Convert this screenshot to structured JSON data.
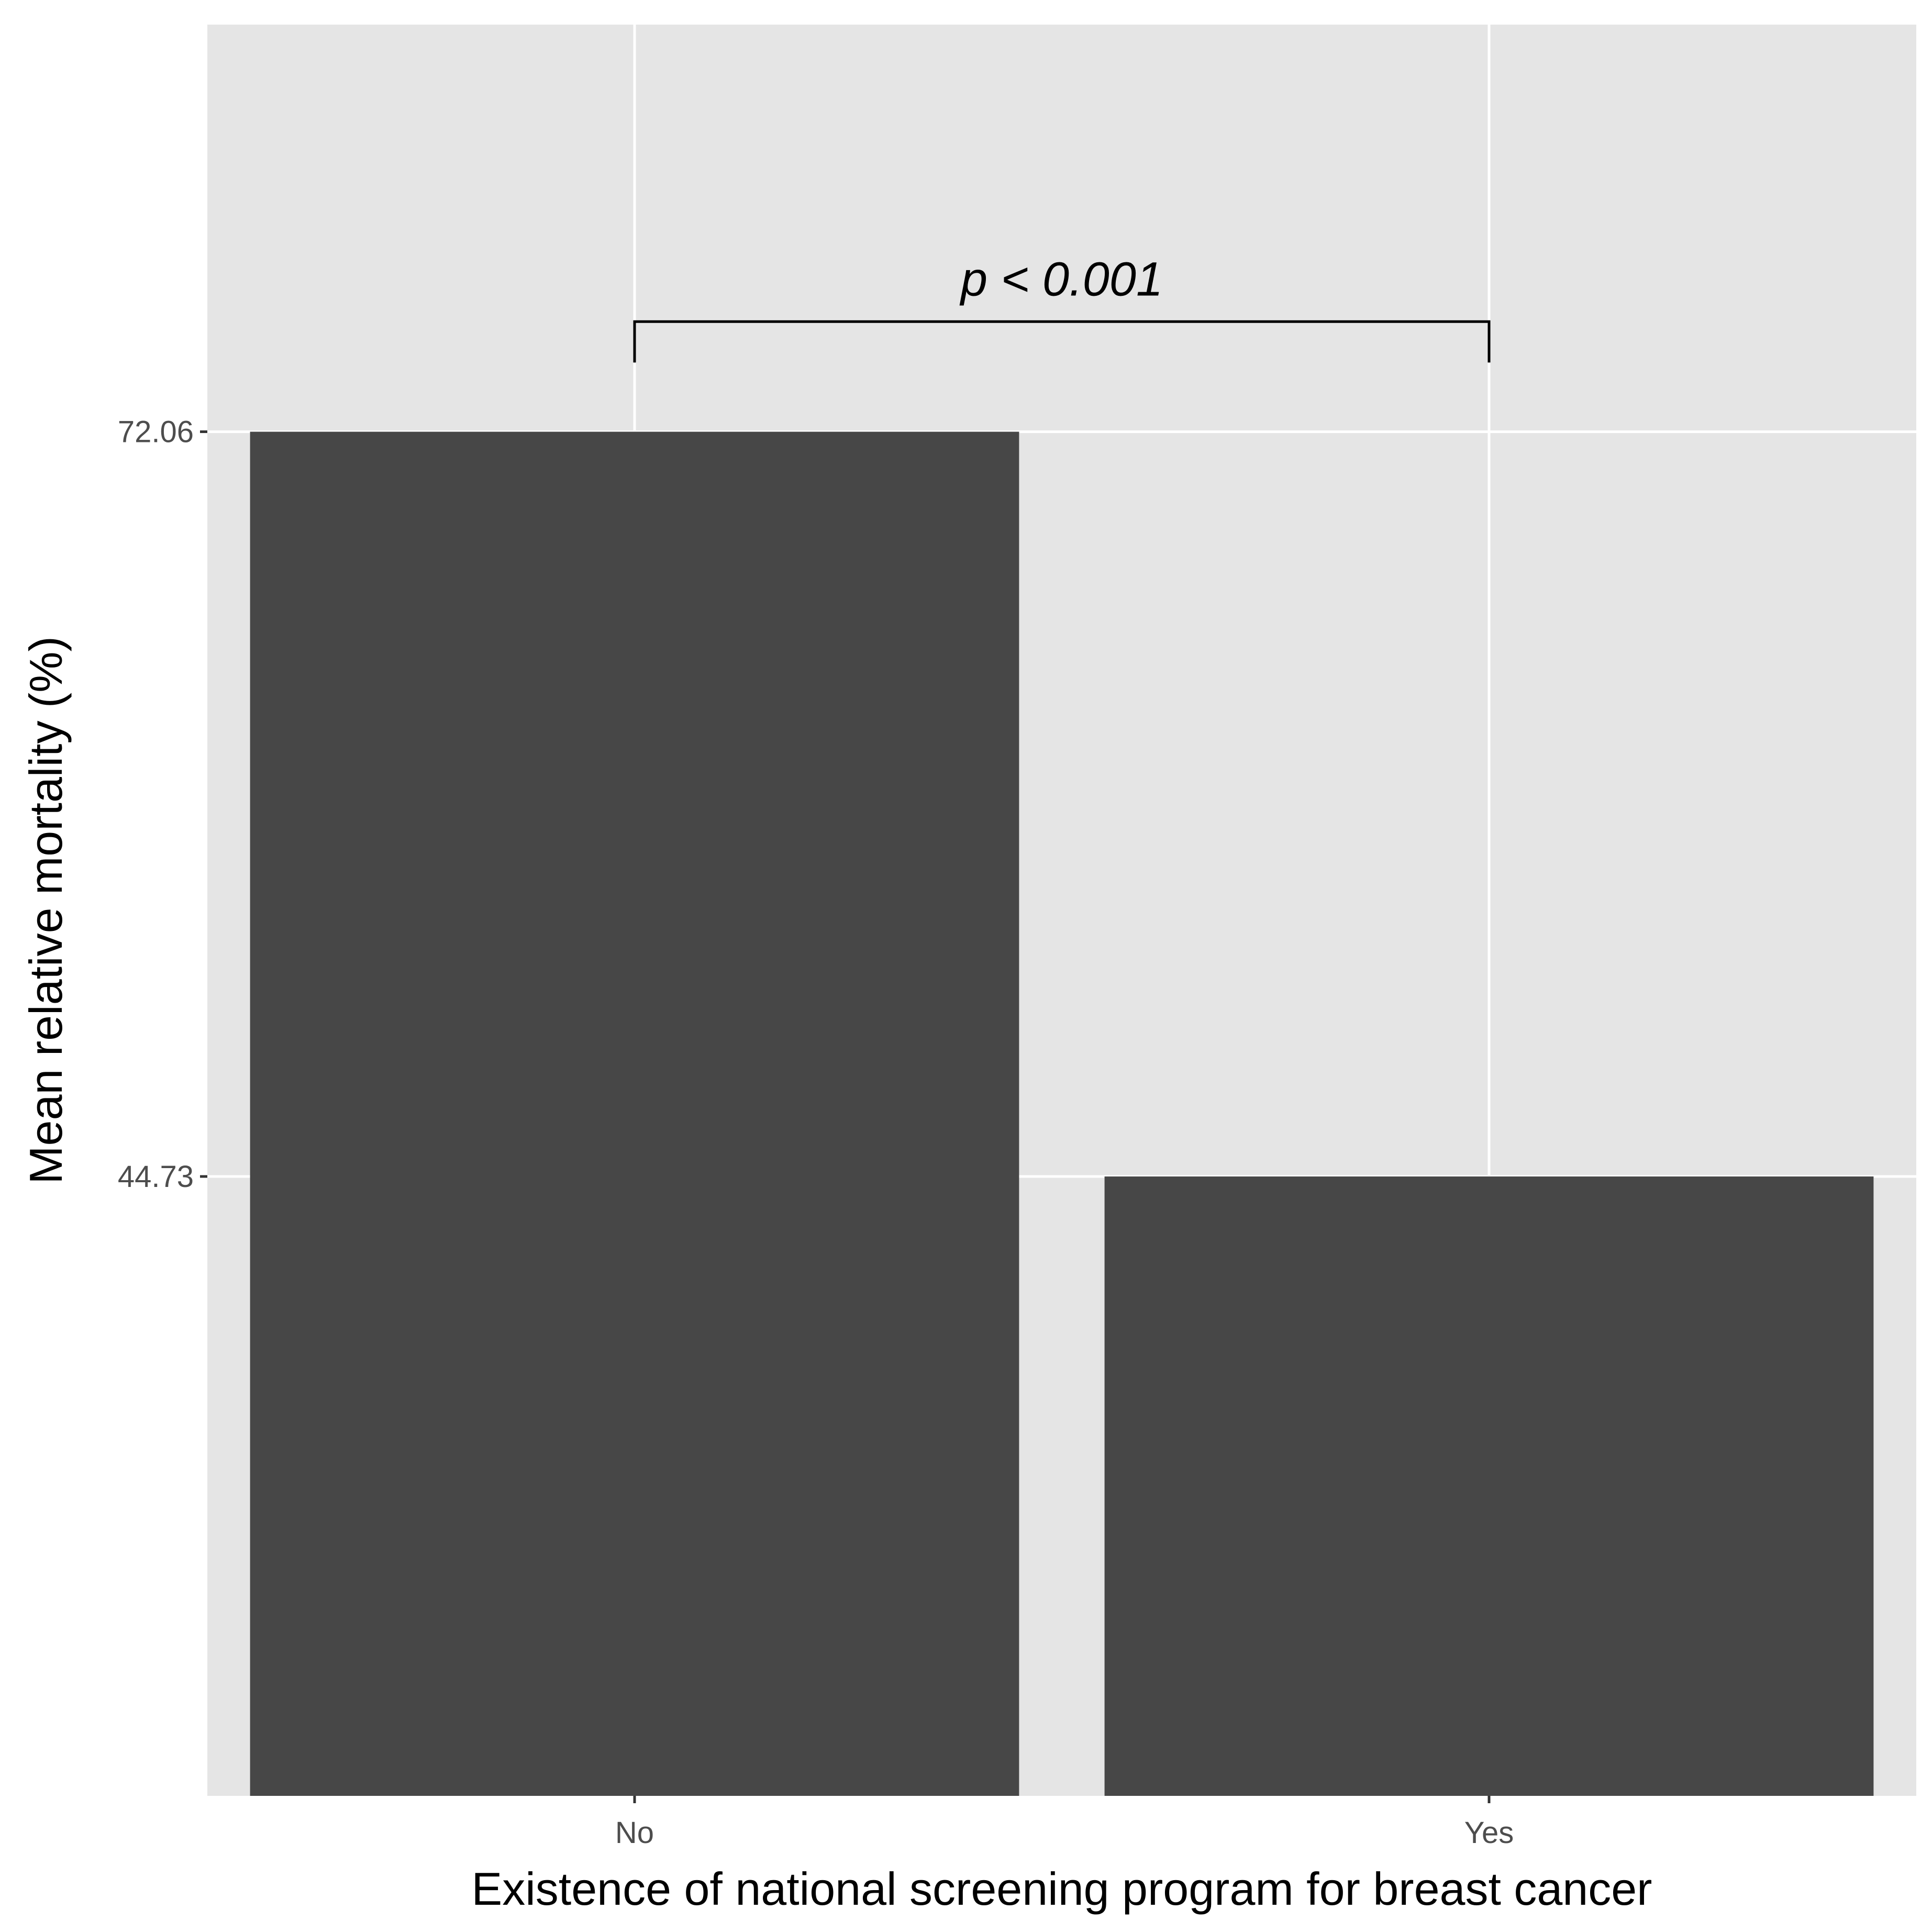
{
  "chart_data": {
    "type": "bar",
    "categories": [
      "No",
      "Yes"
    ],
    "values": [
      72.06,
      44.73
    ],
    "yticks": [
      44.73,
      72.06
    ],
    "ylim": [
      22.0,
      87.0
    ],
    "xlabel": "Existence of national screening program for breast cancer",
    "ylabel": "Mean relative mortality (%)",
    "annotation": {
      "text": "p < 0.001",
      "from": "No",
      "to": "Yes",
      "bracket_top": 76.1,
      "bracket_bottom": 74.6
    },
    "grid": true,
    "legend": "none",
    "colors": {
      "panel": "#e5e5e5",
      "bar": "#474747",
      "grid": "#ffffff",
      "bracket": "#000000"
    }
  }
}
